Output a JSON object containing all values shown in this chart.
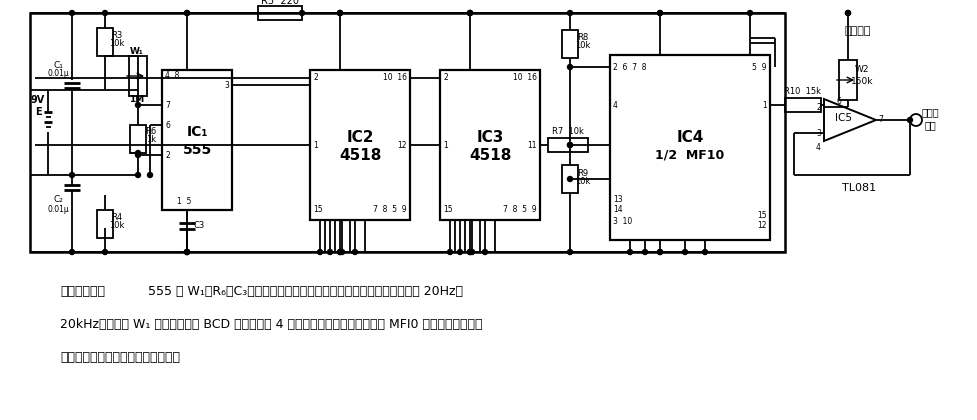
{
  "bg_color": "#ffffff",
  "fig_width": 9.78,
  "fig_height": 4.2,
  "dpi": 100,
  "desc_bold": "正弦波发生器",
  "desc_line1_rest": "    555 和 W₁、R₆、C₃组成无稳态多谐振荡器，图中元件值相应振荡频率为 20Hz～",
  "desc_line2": "20kHz，可通过 W₁ 来调节。经双 BCD 加法计数器 4 级分频，送入开关电容滤波器 MFI0 进行滤波，输出标",
  "desc_line3": "准的正弦基波，再经运放缓冲放大。"
}
